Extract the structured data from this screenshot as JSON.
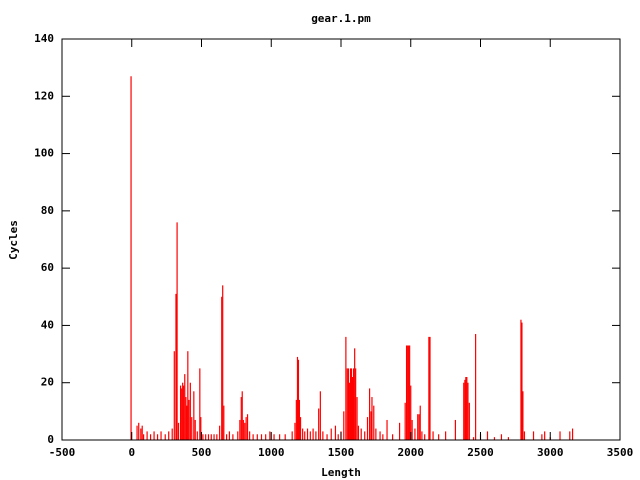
{
  "chart_data": {
    "type": "impulse",
    "title": "gear.1.pm",
    "x_label": "Length",
    "y_label": "Cycles",
    "color": "#ff0000",
    "grid": false,
    "xlim": [
      -500,
      3500
    ],
    "xticks": [
      -500,
      0,
      500,
      1000,
      1500,
      2000,
      2500,
      3000,
      3500
    ],
    "ylim": [
      0,
      140
    ],
    "yticks": [
      0,
      20,
      40,
      60,
      80,
      100,
      120,
      140
    ],
    "x": [
      -5,
      38,
      50,
      65,
      75,
      85,
      110,
      135,
      160,
      185,
      210,
      240,
      265,
      290,
      305,
      317,
      325,
      335,
      350,
      358,
      365,
      372,
      380,
      388,
      395,
      402,
      410,
      420,
      430,
      445,
      455,
      470,
      488,
      495,
      510,
      530,
      550,
      570,
      590,
      610,
      630,
      645,
      652,
      660,
      680,
      700,
      725,
      760,
      775,
      785,
      792,
      800,
      810,
      820,
      830,
      845,
      870,
      900,
      930,
      960,
      990,
      1020,
      1060,
      1100,
      1150,
      1170,
      1180,
      1188,
      1195,
      1202,
      1210,
      1225,
      1240,
      1260,
      1280,
      1300,
      1320,
      1340,
      1352,
      1370,
      1400,
      1430,
      1460,
      1480,
      1500,
      1520,
      1535,
      1545,
      1553,
      1560,
      1568,
      1575,
      1582,
      1590,
      1598,
      1605,
      1615,
      1625,
      1645,
      1670,
      1690,
      1705,
      1715,
      1722,
      1735,
      1750,
      1780,
      1800,
      1830,
      1870,
      1920,
      1960,
      1970,
      1978,
      1985,
      1992,
      2000,
      2010,
      2030,
      2050,
      2060,
      2068,
      2080,
      2100,
      2130,
      2138,
      2160,
      2200,
      2250,
      2320,
      2380,
      2388,
      2395,
      2402,
      2410,
      2420,
      2450,
      2465,
      2500,
      2550,
      2600,
      2650,
      2700,
      2790,
      2797,
      2804,
      2815,
      2880,
      2940,
      2960,
      3000,
      3070,
      3140,
      3160
    ],
    "values": [
      127,
      5,
      6,
      4,
      5,
      2,
      3,
      2,
      3,
      2,
      3,
      2,
      3,
      4,
      31,
      51,
      76,
      6,
      19,
      18,
      20,
      19,
      23,
      15,
      12,
      31,
      14,
      20,
      8,
      17,
      7,
      3,
      25,
      8,
      2,
      2,
      2,
      2,
      2,
      2,
      5,
      50,
      54,
      12,
      2,
      3,
      2,
      3,
      7,
      15,
      17,
      7,
      6,
      8,
      9,
      3,
      2,
      2,
      2,
      2,
      3,
      2,
      2,
      2,
      3,
      6,
      14,
      29,
      28,
      14,
      8,
      4,
      3,
      4,
      3,
      4,
      3,
      11,
      17,
      3,
      2,
      4,
      5,
      2,
      3,
      10,
      36,
      25,
      25,
      20,
      25,
      25,
      22,
      25,
      32,
      25,
      15,
      5,
      4,
      3,
      8,
      18,
      10,
      15,
      12,
      4,
      3,
      2,
      7,
      2,
      6,
      13,
      33,
      33,
      33,
      33,
      19,
      7,
      4,
      9,
      9,
      12,
      3,
      2,
      36,
      36,
      3,
      2,
      3,
      7,
      20,
      21,
      22,
      22,
      20,
      13,
      1,
      37,
      2,
      3,
      1,
      2,
      1,
      42,
      41,
      17,
      3,
      3,
      2,
      3,
      1,
      3,
      3,
      4
    ]
  }
}
